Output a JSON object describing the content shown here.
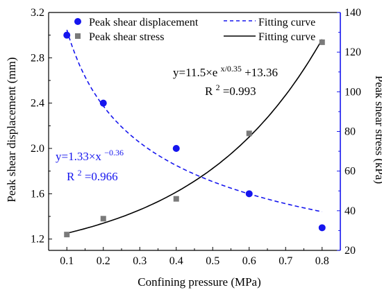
{
  "chart_data": {
    "type": "scatter",
    "xlabel": "Confining pressure (MPa)",
    "ylabel_left": "Peak shear displacement (mm)",
    "ylabel_right": "Peak shear stress (kPa)",
    "xlim": [
      0.05,
      0.85
    ],
    "ylim_left": [
      1.1,
      3.2
    ],
    "ylim_right": [
      20,
      140
    ],
    "x_ticks": [
      "0.1",
      "0.2",
      "0.3",
      "0.4",
      "0.5",
      "0.6",
      "0.7",
      "0.8"
    ],
    "y_ticks_left": [
      "1.2",
      "1.6",
      "2.0",
      "2.4",
      "2.8",
      "3.2"
    ],
    "y_ticks_right": [
      "20",
      "40",
      "60",
      "80",
      "100",
      "120",
      "140"
    ],
    "grid": false,
    "legend_position": "top",
    "series": [
      {
        "name": "Peak shear displacement",
        "axis": "left",
        "marker": "circle",
        "color": "#1515ee",
        "x": [
          0.1,
          0.2,
          0.4,
          0.6,
          0.8
        ],
        "y": [
          3.0,
          2.4,
          2.0,
          1.6,
          1.3
        ]
      },
      {
        "name": "Peak shear stress",
        "axis": "right",
        "marker": "square",
        "color": "#7a7a7a",
        "x": [
          0.1,
          0.2,
          0.4,
          0.6,
          0.8
        ],
        "y": [
          28,
          36,
          46,
          79,
          125
        ]
      }
    ],
    "fits": [
      {
        "name": "Fitting curve",
        "axis": "left",
        "style": "dashed",
        "color": "#1515ee",
        "model": "power",
        "a": 1.33,
        "b": -0.36
      },
      {
        "name": "Fitting curve",
        "axis": "right",
        "style": "solid",
        "color": "#000000",
        "model": "exp",
        "a": 11.5,
        "t": 0.35,
        "c": 13.36
      }
    ],
    "annotations": {
      "fit_disp": {
        "base": "y=1.33×x",
        "exp": "−0.36",
        "r2_label": "R",
        "r2_exp": "2",
        "r2_value": "=0.966",
        "color": "#1515ee"
      },
      "fit_stress": {
        "base": "y=11.5×e",
        "exp": "x/0.35",
        "tail": "+13.36",
        "r2_label": "R",
        "r2_exp": "2",
        "r2_value": "=0.993",
        "color": "#000000"
      }
    }
  }
}
